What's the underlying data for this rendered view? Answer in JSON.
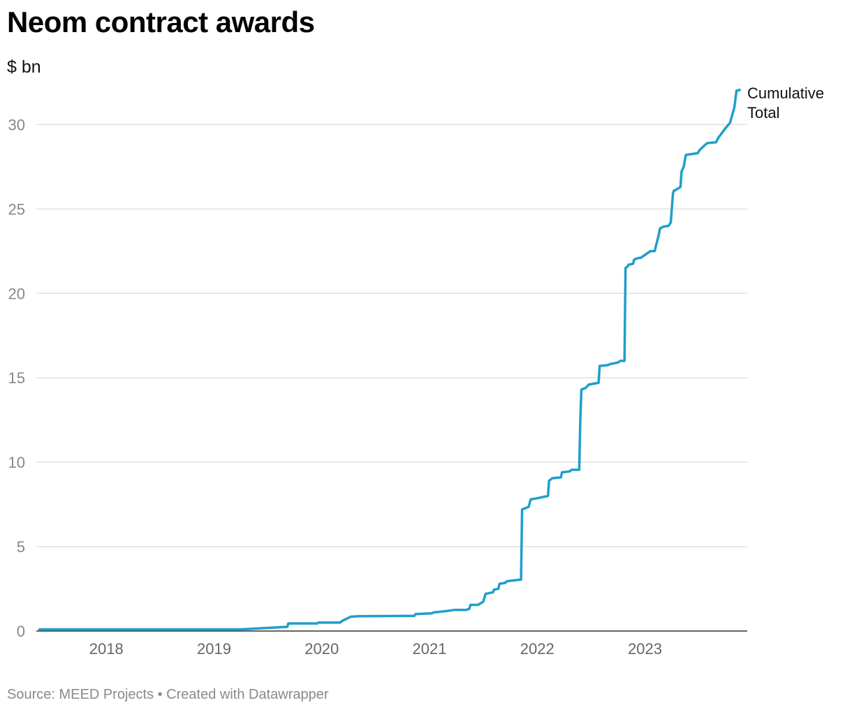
{
  "header": {
    "title": "Neom contract awards",
    "subtitle": "$ bn"
  },
  "footer": {
    "source": "Source: MEED Projects • Created with Datawrapper"
  },
  "colors": {
    "line": "#1f9fc8",
    "grid": "#e0e0e0",
    "axis": "#333333"
  },
  "chart_data": {
    "type": "line",
    "title": "Neom contract awards",
    "ylabel": "$ bn",
    "xlabel": "",
    "ylim": [
      0,
      32
    ],
    "xlim": [
      2017.35,
      2023.95
    ],
    "yticks": [
      0,
      5,
      10,
      15,
      20,
      25,
      30
    ],
    "xticks": [
      {
        "value": 2018.0,
        "label": "2018"
      },
      {
        "value": 2019.0,
        "label": "2019"
      },
      {
        "value": 2020.0,
        "label": "2020"
      },
      {
        "value": 2021.0,
        "label": "2021"
      },
      {
        "value": 2022.0,
        "label": "2022"
      },
      {
        "value": 2023.0,
        "label": "2023"
      }
    ],
    "grid": true,
    "series": [
      {
        "name": "Cumulative Total",
        "label_lines": [
          "Cumulative",
          "Total"
        ],
        "x": [
          2017.38,
          2019.25,
          2019.68,
          2019.69,
          2019.96,
          2019.97,
          2020.17,
          2020.19,
          2020.27,
          2020.35,
          2020.86,
          2020.87,
          2021.02,
          2021.04,
          2021.15,
          2021.23,
          2021.24,
          2021.34,
          2021.37,
          2021.38,
          2021.45,
          2021.49,
          2021.5,
          2021.52,
          2021.59,
          2021.6,
          2021.64,
          2021.65,
          2021.7,
          2021.72,
          2021.85,
          2021.86,
          2021.9,
          2021.92,
          2021.94,
          2021.99,
          2022.1,
          2022.11,
          2022.14,
          2022.22,
          2022.23,
          2022.3,
          2022.32,
          2022.39,
          2022.4,
          2022.41,
          2022.45,
          2022.48,
          2022.57,
          2022.58,
          2022.66,
          2022.67,
          2022.75,
          2022.77,
          2022.81,
          2022.82,
          2022.84,
          2022.85,
          2022.89,
          2022.9,
          2022.94,
          2022.96,
          2023.04,
          2023.05,
          2023.09,
          2023.13,
          2023.14,
          2023.16,
          2023.17,
          2023.22,
          2023.24,
          2023.26,
          2023.27,
          2023.28,
          2023.33,
          2023.34,
          2023.36,
          2023.38,
          2023.49,
          2023.51,
          2023.56,
          2023.58,
          2023.66,
          2023.68,
          2023.75,
          2023.79,
          2023.83,
          2023.85,
          2023.88
        ],
        "values": [
          0.1,
          0.1,
          0.25,
          0.45,
          0.45,
          0.5,
          0.5,
          0.6,
          0.85,
          0.88,
          0.9,
          1.0,
          1.05,
          1.1,
          1.18,
          1.25,
          1.25,
          1.25,
          1.32,
          1.55,
          1.55,
          1.7,
          1.75,
          2.2,
          2.3,
          2.45,
          2.5,
          2.8,
          2.85,
          2.95,
          3.05,
          7.2,
          7.3,
          7.35,
          7.8,
          7.85,
          8.0,
          8.9,
          9.05,
          9.1,
          9.4,
          9.45,
          9.55,
          9.55,
          12.4,
          14.3,
          14.4,
          14.6,
          14.7,
          15.7,
          15.75,
          15.8,
          15.9,
          16.0,
          16.0,
          21.5,
          21.6,
          21.7,
          21.75,
          22.0,
          22.1,
          22.1,
          22.45,
          22.5,
          22.5,
          23.5,
          23.85,
          23.9,
          23.95,
          24.0,
          24.2,
          25.9,
          26.1,
          26.1,
          26.3,
          27.2,
          27.5,
          28.2,
          28.3,
          28.5,
          28.8,
          28.9,
          28.95,
          29.2,
          29.8,
          30.1,
          31.0,
          32.0,
          32.05
        ]
      }
    ]
  }
}
